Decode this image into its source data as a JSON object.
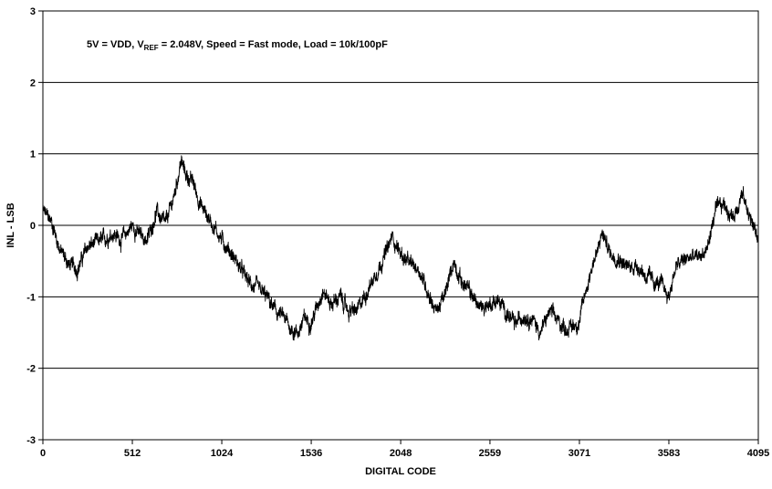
{
  "chart_data": {
    "type": "line",
    "title": "",
    "annotation": {
      "prefix": "5V = VDD, V",
      "subscript": "REF",
      "suffix": " =  2.048V, Speed = Fast mode, Load = 10k/100pF"
    },
    "xlabel": "DIGITAL CODE",
    "ylabel": "INL - LSB",
    "xlim": [
      0,
      4095
    ],
    "ylim": [
      -3,
      3
    ],
    "x_ticks": [
      0,
      512,
      1024,
      1536,
      2048,
      2559,
      3071,
      3583,
      4095
    ],
    "x_tick_labels": [
      "0",
      "512",
      "1024",
      "1536",
      "2048",
      "2559",
      "3071",
      "3583",
      "4095"
    ],
    "y_ticks": [
      3,
      2,
      1,
      0,
      -1,
      -2,
      -3
    ],
    "y_tick_labels": [
      "3",
      "2",
      "1",
      "0",
      "-1",
      "-2",
      "-3"
    ],
    "grid": "horizontal",
    "legend": "none",
    "line_color": "#000000",
    "series": [
      {
        "x": [
          0,
          50,
          100,
          150,
          200,
          256,
          300,
          350,
          400,
          450,
          512,
          560,
          600,
          650,
          700,
          750,
          790,
          820,
          860,
          900,
          950,
          1000,
          1024,
          1080,
          1130,
          1180,
          1230,
          1280,
          1330,
          1380,
          1420,
          1460,
          1500,
          1536,
          1560,
          1600,
          1650,
          1700,
          1750,
          1800,
          1850,
          1900,
          1950,
          1980,
          2000,
          2048,
          2100,
          2150,
          2200,
          2250,
          2300,
          2350,
          2400,
          2450,
          2500,
          2559,
          2600,
          2650,
          2700,
          2750,
          2800,
          2850,
          2900,
          2950,
          3000,
          3071,
          3100,
          3150,
          3180,
          3200,
          3250,
          3300,
          3350,
          3400,
          3450,
          3500,
          3550,
          3583,
          3620,
          3660,
          3700,
          3750,
          3800,
          3850,
          3900,
          3950,
          4000,
          4050,
          4095
        ],
        "y": [
          0.2,
          0.05,
          -0.35,
          -0.55,
          -0.6,
          -0.3,
          -0.25,
          -0.2,
          -0.1,
          -0.2,
          0.0,
          -0.15,
          -0.2,
          0.2,
          0.0,
          0.4,
          0.9,
          0.7,
          0.6,
          0.3,
          0.1,
          -0.1,
          -0.2,
          -0.4,
          -0.6,
          -0.8,
          -0.9,
          -1.0,
          -1.2,
          -1.3,
          -1.45,
          -1.5,
          -1.3,
          -1.35,
          -1.2,
          -0.9,
          -1.1,
          -1.0,
          -1.2,
          -1.2,
          -0.95,
          -0.7,
          -0.45,
          -0.3,
          -0.15,
          -0.4,
          -0.55,
          -0.6,
          -0.9,
          -1.2,
          -1.0,
          -0.5,
          -0.8,
          -0.95,
          -1.15,
          -1.1,
          -1.05,
          -1.2,
          -1.4,
          -1.25,
          -1.3,
          -1.5,
          -1.2,
          -1.35,
          -1.45,
          -1.35,
          -1.0,
          -0.5,
          -0.35,
          -0.1,
          -0.4,
          -0.45,
          -0.6,
          -0.55,
          -0.7,
          -0.8,
          -0.85,
          -1.0,
          -0.6,
          -0.5,
          -0.45,
          -0.45,
          -0.35,
          0.2,
          0.3,
          0.1,
          0.45,
          0.1,
          -0.2
        ]
      }
    ]
  }
}
